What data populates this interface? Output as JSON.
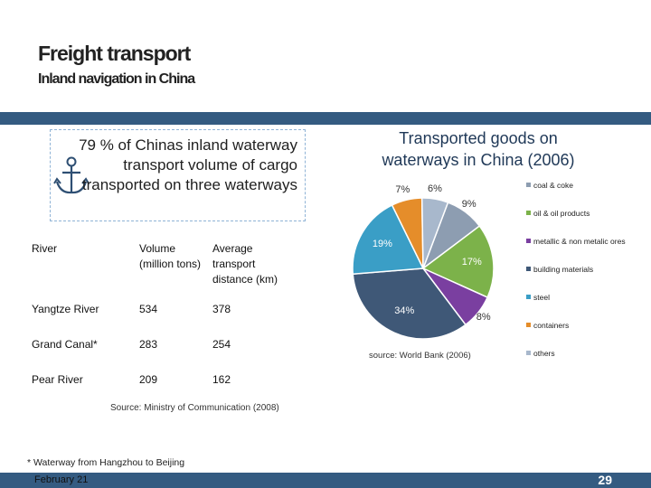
{
  "slide": {
    "title": "Freight transport",
    "subtitle": "Inland navigation in China",
    "footer_date": "February 21",
    "page_number": "29",
    "footnote": "* Waterway  from Hangzhou to Beijing",
    "accent_color": "#345b81"
  },
  "callout": {
    "text": "79 % of Chinas inland waterway transport volume of cargo transported on three waterways",
    "icon": "anchor-icon"
  },
  "table": {
    "headers": [
      "River",
      "Volume (million tons)",
      "Average transport distance (km)"
    ],
    "rows": [
      [
        "Yangtze River",
        "534",
        "378"
      ],
      [
        "Grand Canal*",
        "283",
        "254"
      ],
      [
        "Pear River",
        "209",
        "162"
      ]
    ],
    "source": "Source: Ministry of Communication (2008)"
  },
  "chart_data": {
    "type": "pie",
    "title": "Transported goods on waterways in China (2006)",
    "source": "source: World Bank (2006)",
    "legend_position": "right",
    "series": [
      {
        "name": "coal & coke",
        "value": 9,
        "label": "9%",
        "color": "#8d9db1"
      },
      {
        "name": "oil & oil products",
        "value": 17,
        "label": "17%",
        "color": "#7cb24a"
      },
      {
        "name": "metallic & non metalic ores",
        "value": 8,
        "label": "8%",
        "color": "#7a3fa0"
      },
      {
        "name": "building materials",
        "value": 34,
        "label": "34%",
        "color": "#3f5877"
      },
      {
        "name": "steel",
        "value": 19,
        "label": "19%",
        "color": "#3a9ec6"
      },
      {
        "name": "containers",
        "value": 7,
        "label": "7%",
        "color": "#e58d2a"
      },
      {
        "name": "others",
        "value": 6,
        "label": "6%",
        "color": "#a8b8cc"
      }
    ]
  }
}
